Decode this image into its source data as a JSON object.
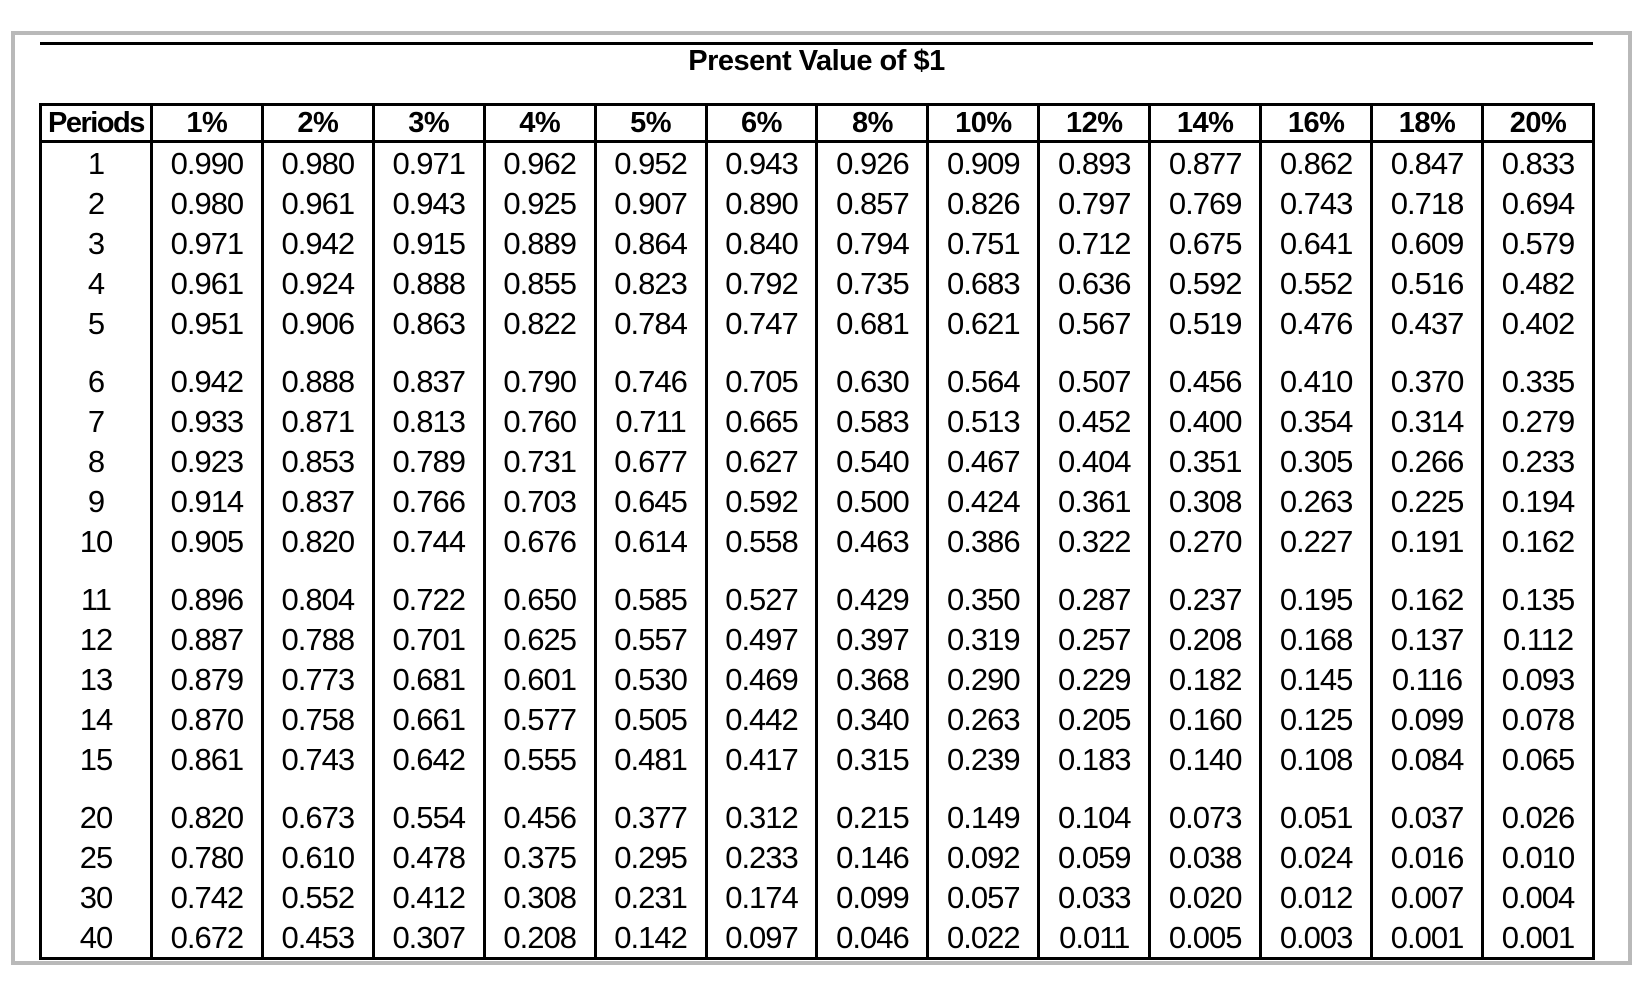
{
  "page": {
    "title": "Present Value of $1"
  },
  "colors": {
    "table_border": "#000000",
    "page_frame": "#b9b9b9",
    "text": "#000000",
    "background": "#ffffff"
  },
  "table": {
    "columns": [
      "Periods",
      "1%",
      "2%",
      "3%",
      "4%",
      "5%",
      "6%",
      "8%",
      "10%",
      "12%",
      "14%",
      "16%",
      "18%",
      "20%"
    ],
    "row_groups": [
      [
        [
          "1",
          "0.990",
          "0.980",
          "0.971",
          "0.962",
          "0.952",
          "0.943",
          "0.926",
          "0.909",
          "0.893",
          "0.877",
          "0.862",
          "0.847",
          "0.833"
        ],
        [
          "2",
          "0.980",
          "0.961",
          "0.943",
          "0.925",
          "0.907",
          "0.890",
          "0.857",
          "0.826",
          "0.797",
          "0.769",
          "0.743",
          "0.718",
          "0.694"
        ],
        [
          "3",
          "0.971",
          "0.942",
          "0.915",
          "0.889",
          "0.864",
          "0.840",
          "0.794",
          "0.751",
          "0.712",
          "0.675",
          "0.641",
          "0.609",
          "0.579"
        ],
        [
          "4",
          "0.961",
          "0.924",
          "0.888",
          "0.855",
          "0.823",
          "0.792",
          "0.735",
          "0.683",
          "0.636",
          "0.592",
          "0.552",
          "0.516",
          "0.482"
        ],
        [
          "5",
          "0.951",
          "0.906",
          "0.863",
          "0.822",
          "0.784",
          "0.747",
          "0.681",
          "0.621",
          "0.567",
          "0.519",
          "0.476",
          "0.437",
          "0.402"
        ]
      ],
      [
        [
          "6",
          "0.942",
          "0.888",
          "0.837",
          "0.790",
          "0.746",
          "0.705",
          "0.630",
          "0.564",
          "0.507",
          "0.456",
          "0.410",
          "0.370",
          "0.335"
        ],
        [
          "7",
          "0.933",
          "0.871",
          "0.813",
          "0.760",
          "0.711",
          "0.665",
          "0.583",
          "0.513",
          "0.452",
          "0.400",
          "0.354",
          "0.314",
          "0.279"
        ],
        [
          "8",
          "0.923",
          "0.853",
          "0.789",
          "0.731",
          "0.677",
          "0.627",
          "0.540",
          "0.467",
          "0.404",
          "0.351",
          "0.305",
          "0.266",
          "0.233"
        ],
        [
          "9",
          "0.914",
          "0.837",
          "0.766",
          "0.703",
          "0.645",
          "0.592",
          "0.500",
          "0.424",
          "0.361",
          "0.308",
          "0.263",
          "0.225",
          "0.194"
        ],
        [
          "10",
          "0.905",
          "0.820",
          "0.744",
          "0.676",
          "0.614",
          "0.558",
          "0.463",
          "0.386",
          "0.322",
          "0.270",
          "0.227",
          "0.191",
          "0.162"
        ]
      ],
      [
        [
          "11",
          "0.896",
          "0.804",
          "0.722",
          "0.650",
          "0.585",
          "0.527",
          "0.429",
          "0.350",
          "0.287",
          "0.237",
          "0.195",
          "0.162",
          "0.135"
        ],
        [
          "12",
          "0.887",
          "0.788",
          "0.701",
          "0.625",
          "0.557",
          "0.497",
          "0.397",
          "0.319",
          "0.257",
          "0.208",
          "0.168",
          "0.137",
          "0.112"
        ],
        [
          "13",
          "0.879",
          "0.773",
          "0.681",
          "0.601",
          "0.530",
          "0.469",
          "0.368",
          "0.290",
          "0.229",
          "0.182",
          "0.145",
          "0.116",
          "0.093"
        ],
        [
          "14",
          "0.870",
          "0.758",
          "0.661",
          "0.577",
          "0.505",
          "0.442",
          "0.340",
          "0.263",
          "0.205",
          "0.160",
          "0.125",
          "0.099",
          "0.078"
        ],
        [
          "15",
          "0.861",
          "0.743",
          "0.642",
          "0.555",
          "0.481",
          "0.417",
          "0.315",
          "0.239",
          "0.183",
          "0.140",
          "0.108",
          "0.084",
          "0.065"
        ]
      ],
      [
        [
          "20",
          "0.820",
          "0.673",
          "0.554",
          "0.456",
          "0.377",
          "0.312",
          "0.215",
          "0.149",
          "0.104",
          "0.073",
          "0.051",
          "0.037",
          "0.026"
        ],
        [
          "25",
          "0.780",
          "0.610",
          "0.478",
          "0.375",
          "0.295",
          "0.233",
          "0.146",
          "0.092",
          "0.059",
          "0.038",
          "0.024",
          "0.016",
          "0.010"
        ],
        [
          "30",
          "0.742",
          "0.552",
          "0.412",
          "0.308",
          "0.231",
          "0.174",
          "0.099",
          "0.057",
          "0.033",
          "0.020",
          "0.012",
          "0.007",
          "0.004"
        ],
        [
          "40",
          "0.672",
          "0.453",
          "0.307",
          "0.208",
          "0.142",
          "0.097",
          "0.046",
          "0.022",
          "0.011",
          "0.005",
          "0.003",
          "0.001",
          "0.001"
        ]
      ]
    ]
  }
}
